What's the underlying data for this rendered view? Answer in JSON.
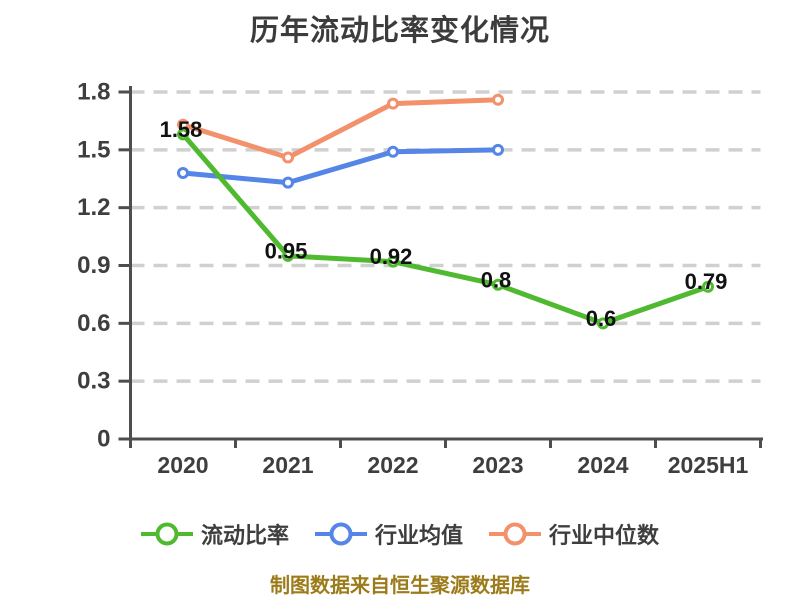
{
  "title": "历年流动比率变化情况",
  "footer": {
    "text": "制图数据来自恒生聚源数据库"
  },
  "chart_data": {
    "type": "line",
    "title": "历年流动比率变化情况",
    "categories": [
      "2020",
      "2021",
      "2022",
      "2023",
      "2024",
      "2025H1"
    ],
    "series": [
      {
        "name": "流动比率",
        "color": "#4fba30",
        "values": [
          1.58,
          0.95,
          0.92,
          0.8,
          0.6,
          0.79
        ],
        "point_labels": [
          "1.58",
          "0.95",
          "0.92",
          "0.8",
          "0.6",
          "0.79"
        ]
      },
      {
        "name": "行业均值",
        "color": "#5585e6",
        "values": [
          1.38,
          1.33,
          1.49,
          1.5,
          null,
          null
        ],
        "point_labels": []
      },
      {
        "name": "行业中位数",
        "color": "#f2916b",
        "values": [
          1.63,
          1.46,
          1.74,
          1.76,
          null,
          null
        ],
        "point_labels": []
      }
    ],
    "ylim": [
      0,
      1.8
    ],
    "yticks": [
      "0",
      "0.3",
      "0.6",
      "0.9",
      "1.2",
      "1.5",
      "1.8"
    ],
    "grid": "horizontal-dashed",
    "legend_position": "bottom",
    "marker": "circle-white-fill"
  },
  "colors": {
    "background": "#ffffff",
    "title_text": "#3c3c3c",
    "axis": "#4e4e4e",
    "gridline": "#d0d0d0",
    "tick_text": "#3e3e3e",
    "point_label_text": "#111111",
    "legend_text": "#3e3e3e",
    "footer_text": "#9c7b1b"
  }
}
